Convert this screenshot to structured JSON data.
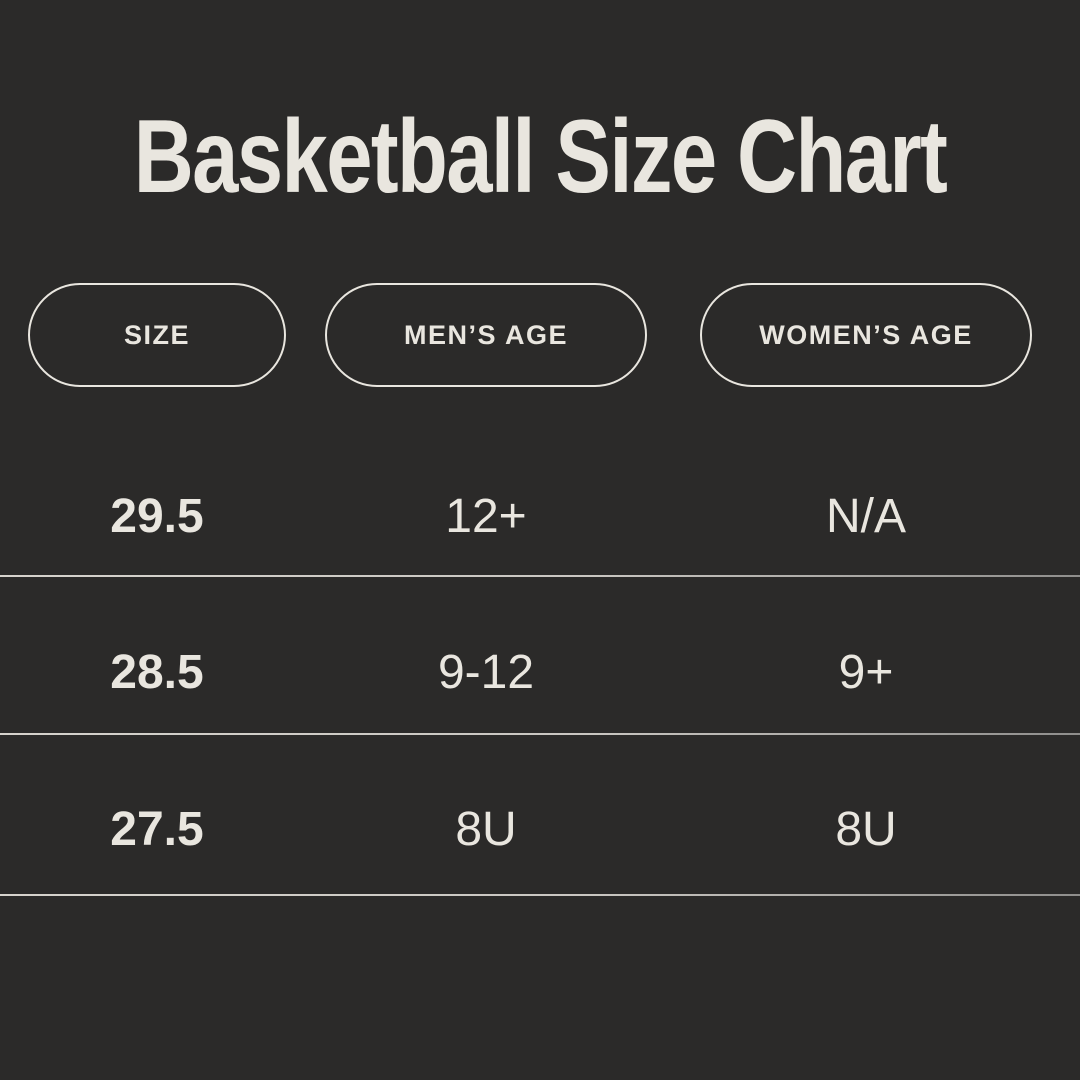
{
  "header": {
    "title": "Basketball Size Chart"
  },
  "columns": [
    {
      "label": "SIZE"
    },
    {
      "label": "MEN’S AGE"
    },
    {
      "label": "WOMEN’S AGE"
    }
  ],
  "rows": [
    {
      "cells": [
        "29.5",
        "12+",
        "N/A"
      ]
    },
    {
      "cells": [
        "28.5",
        "9-12",
        "9+"
      ]
    },
    {
      "cells": [
        "27.5",
        "8U",
        "8U"
      ]
    }
  ],
  "colors": {
    "background": "#2b2a29",
    "text": "#e9e6df",
    "pill_border": "#e9e6df",
    "divider": "#c9c6c1"
  },
  "chart_data": {
    "type": "table",
    "title": "Basketball Size Chart",
    "columns": [
      "SIZE",
      "MEN’S AGE",
      "WOMEN’S AGE"
    ],
    "rows": [
      [
        "29.5",
        "12+",
        "N/A"
      ],
      [
        "28.5",
        "9-12",
        "9+"
      ],
      [
        "27.5",
        "8U",
        "8U"
      ]
    ]
  }
}
